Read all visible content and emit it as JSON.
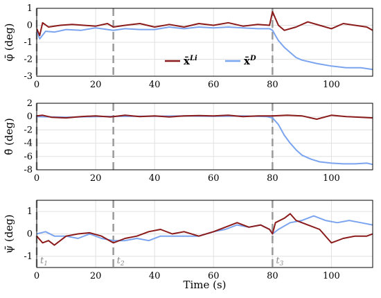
{
  "chart_data": [
    {
      "type": "line",
      "ylabel": "φ̄ (deg)",
      "xlim": [
        0,
        114
      ],
      "ylim": [
        -3,
        1
      ],
      "yticks": [
        1,
        0,
        -1,
        -2,
        -3
      ],
      "xticks": [
        0,
        20,
        40,
        60,
        80,
        100
      ],
      "grid": true,
      "legend": "middle-right",
      "series": [
        {
          "name": "x̄Li",
          "color": "#8b1a1a",
          "x": [
            0,
            1,
            2,
            4,
            8,
            12,
            16,
            20,
            24,
            26,
            30,
            35,
            40,
            45,
            50,
            55,
            60,
            65,
            70,
            75,
            79,
            80,
            81,
            82,
            84,
            88,
            92,
            96,
            100,
            104,
            108,
            112,
            114
          ],
          "y": [
            -0.2,
            -0.6,
            0.15,
            -0.1,
            0.0,
            0.05,
            0.0,
            -0.05,
            0.1,
            -0.1,
            0.0,
            0.1,
            -0.1,
            0.05,
            -0.1,
            0.1,
            0.0,
            0.15,
            -0.05,
            0.05,
            0.0,
            0.8,
            0.4,
            0.0,
            -0.3,
            -0.1,
            0.2,
            0.0,
            -0.2,
            0.1,
            0.0,
            -0.1,
            -0.3
          ]
        },
        {
          "name": "x̄D",
          "color": "#7ba4f0",
          "x": [
            0,
            1,
            3,
            6,
            10,
            15,
            20,
            26,
            30,
            35,
            40,
            45,
            50,
            55,
            60,
            65,
            70,
            75,
            79,
            80,
            81,
            82,
            84,
            86,
            88,
            90,
            95,
            100,
            105,
            110,
            114
          ],
          "y": [
            -0.3,
            -0.8,
            -0.35,
            -0.4,
            -0.25,
            -0.3,
            -0.15,
            -0.3,
            -0.2,
            -0.25,
            -0.25,
            -0.1,
            -0.2,
            -0.1,
            -0.15,
            -0.1,
            -0.15,
            -0.2,
            -0.2,
            -0.3,
            -0.6,
            -0.9,
            -1.3,
            -1.6,
            -1.9,
            -2.05,
            -2.25,
            -2.4,
            -2.5,
            -2.5,
            -2.6
          ]
        }
      ],
      "annotations": []
    },
    {
      "type": "line",
      "ylabel": "θ̄ (deg)",
      "xlim": [
        0,
        114
      ],
      "ylim": [
        -8,
        2
      ],
      "yticks": [
        2,
        0,
        -2,
        -4,
        -6,
        -8
      ],
      "xticks": [
        0,
        20,
        40,
        60,
        80,
        100
      ],
      "grid": true,
      "series": [
        {
          "name": "x̄Li",
          "color": "#8b1a1a",
          "x": [
            0,
            2,
            5,
            10,
            15,
            20,
            25,
            30,
            35,
            40,
            45,
            50,
            55,
            60,
            65,
            70,
            75,
            80,
            85,
            90,
            95,
            100,
            105,
            110,
            114
          ],
          "y": [
            0.1,
            0.2,
            -0.1,
            -0.2,
            0.0,
            0.1,
            -0.05,
            0.2,
            0.0,
            0.1,
            -0.05,
            0.1,
            0.15,
            0.1,
            0.2,
            0.0,
            0.1,
            0.1,
            0.2,
            0.1,
            -0.4,
            0.2,
            0.0,
            -0.1,
            -0.2
          ]
        },
        {
          "name": "x̄D",
          "color": "#7ba4f0",
          "x": [
            0,
            10,
            20,
            30,
            40,
            50,
            60,
            70,
            78,
            80,
            82,
            84,
            86,
            88,
            90,
            93,
            96,
            100,
            104,
            108,
            112,
            114
          ],
          "y": [
            0.0,
            -0.1,
            0.0,
            0.05,
            0.05,
            0.1,
            0.05,
            0.1,
            0.0,
            -0.2,
            -1.2,
            -2.8,
            -4.0,
            -5.0,
            -5.8,
            -6.4,
            -6.8,
            -7.0,
            -7.1,
            -7.1,
            -7.0,
            -7.2
          ]
        }
      ],
      "annotations": []
    },
    {
      "type": "line",
      "ylabel": "ψ̄ (deg)",
      "xlabel": "Time (s)",
      "xlim": [
        0,
        114
      ],
      "ylim": [
        -1.5,
        1.5
      ],
      "yticks": [
        1,
        0,
        -1
      ],
      "xticks": [
        0,
        20,
        40,
        60,
        80,
        100
      ],
      "grid": true,
      "series": [
        {
          "name": "x̄Li",
          "color": "#8b1a1a",
          "x": [
            0,
            2,
            4,
            6,
            8,
            10,
            14,
            18,
            22,
            26,
            30,
            34,
            38,
            42,
            46,
            50,
            55,
            60,
            64,
            68,
            72,
            76,
            79,
            80,
            81,
            84,
            86,
            88,
            92,
            96,
            100,
            104,
            108,
            112,
            114
          ],
          "y": [
            -0.1,
            -0.4,
            -0.3,
            -0.5,
            -0.3,
            -0.1,
            0.0,
            0.05,
            -0.1,
            -0.4,
            -0.2,
            -0.1,
            0.1,
            0.2,
            0.0,
            0.1,
            -0.1,
            0.1,
            0.3,
            0.5,
            0.3,
            0.4,
            0.2,
            0.0,
            0.5,
            0.7,
            0.9,
            0.6,
            0.4,
            0.2,
            -0.4,
            -0.2,
            -0.1,
            -0.1,
            0.0
          ]
        },
        {
          "name": "x̄D",
          "color": "#7ba4f0",
          "x": [
            0,
            3,
            6,
            10,
            14,
            18,
            22,
            26,
            30,
            34,
            38,
            42,
            46,
            50,
            55,
            60,
            64,
            68,
            72,
            76,
            79,
            80,
            82,
            86,
            90,
            94,
            98,
            102,
            106,
            110,
            114
          ],
          "y": [
            0.0,
            0.1,
            -0.1,
            -0.1,
            -0.2,
            0.0,
            -0.2,
            -0.3,
            -0.3,
            -0.2,
            -0.3,
            -0.1,
            -0.1,
            -0.1,
            -0.1,
            0.1,
            0.2,
            0.4,
            0.3,
            0.4,
            0.2,
            0.0,
            0.2,
            0.5,
            0.6,
            0.8,
            0.6,
            0.5,
            0.6,
            0.5,
            0.4
          ]
        }
      ],
      "annotations": [
        {
          "x": 0,
          "text_main": "t",
          "text_sub": "1"
        },
        {
          "x": 26,
          "text_main": "t",
          "text_sub": "2"
        },
        {
          "x": 80,
          "text_main": "t",
          "text_sub": "3"
        }
      ]
    }
  ],
  "vlines": [
    0,
    26,
    80
  ],
  "legend": [
    {
      "main": "x̄",
      "sup": "Li",
      "color": "#8b1a1a"
    },
    {
      "main": "x̄",
      "sup": "D",
      "color": "#7ba4f0"
    }
  ],
  "colors": {
    "grid": "#e0e0e0",
    "vline": "#9a9a9a",
    "red": "#8b1a1a",
    "blue": "#7ba4f0"
  }
}
